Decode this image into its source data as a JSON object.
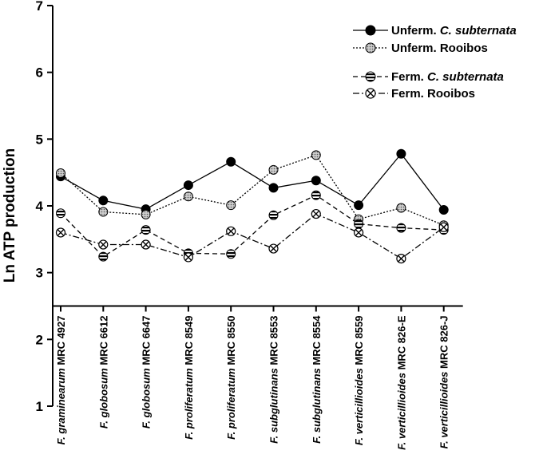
{
  "chart_data": {
    "type": "line",
    "ylabel": "Ln ATP production",
    "xlabel": "",
    "ylim": [
      1,
      7
    ],
    "yticks": [
      1,
      2,
      3,
      4,
      5,
      6,
      7
    ],
    "x_axis_at": 2.5,
    "grid": false,
    "legend_position": "top-right",
    "categories": [
      {
        "species": "F. graminearum",
        "strain": "MRC 4927"
      },
      {
        "species": "F. globosum",
        "strain": "MRC 6612"
      },
      {
        "species": "F. globosum",
        "strain": "MRC 6647"
      },
      {
        "species": "F. proliferatum",
        "strain": "MRC 8549"
      },
      {
        "species": "F. proliferatum",
        "strain": "MRC 8550"
      },
      {
        "species": "F. subglutinans",
        "strain": "MRC 8553"
      },
      {
        "species": "F. subglutinans",
        "strain": "MRC 8554"
      },
      {
        "species": "F. verticillioides",
        "strain": "MRC 8559"
      },
      {
        "species": "F. verticillioides",
        "strain": "MRC 826-E"
      },
      {
        "species": "F. verticillioides",
        "strain": "MRC 826-J"
      }
    ],
    "series": [
      {
        "label_prefix": "Unferm. ",
        "label_italic": "C. subternata",
        "line": "solid",
        "marker": "filled",
        "color": "#000000",
        "values": [
          4.44,
          4.08,
          3.95,
          4.31,
          4.66,
          4.27,
          4.38,
          4.01,
          4.78,
          3.94
        ]
      },
      {
        "label_prefix": "Unferm. Rooibos",
        "label_italic": "",
        "line": "dotted",
        "marker": "stippled",
        "color": "#000000",
        "values": [
          4.49,
          3.91,
          3.87,
          4.14,
          4.01,
          4.54,
          4.76,
          3.8,
          3.97,
          3.71
        ]
      },
      {
        "label_prefix": "Ferm. ",
        "label_italic": "C. subternata",
        "line": "dashed",
        "marker": "striped",
        "color": "#000000",
        "values": [
          3.89,
          3.24,
          3.64,
          3.29,
          3.28,
          3.86,
          4.16,
          3.73,
          3.67,
          3.64
        ]
      },
      {
        "label_prefix": "Ferm. Rooibos",
        "label_italic": "",
        "line": "dashdot",
        "marker": "crossed",
        "color": "#000000",
        "values": [
          3.6,
          3.42,
          3.42,
          3.23,
          3.62,
          3.36,
          3.88,
          3.6,
          3.21,
          3.68
        ]
      }
    ]
  }
}
